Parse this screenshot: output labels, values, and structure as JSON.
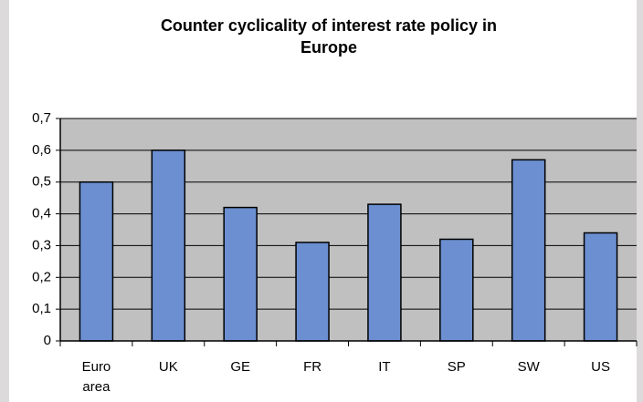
{
  "chart_data": {
    "type": "bar",
    "title": "Counter cyclicality of interest rate policy in Europe",
    "categories": [
      "Euro area",
      "UK",
      "GE",
      "FR",
      "IT",
      "SP",
      "SW",
      "US"
    ],
    "values": [
      0.5,
      0.6,
      0.42,
      0.31,
      0.43,
      0.32,
      0.57,
      0.34
    ],
    "color": "#6b8fd0",
    "plot_background": "#c0c0c0",
    "ylim": [
      0,
      0.7
    ],
    "yticks": [
      0,
      {
        "value": 0.1,
        "label": "0,1"
      },
      {
        "value": 0.2,
        "label": "0,2"
      },
      {
        "value": 0.3,
        "label": "0,3"
      },
      {
        "value": 0.4,
        "label": "0,4"
      },
      {
        "value": 0.5,
        "label": "0,5"
      },
      {
        "value": 0.6,
        "label": "0,6"
      },
      {
        "value": 0.7,
        "label": "0,7"
      }
    ],
    "grid": true
  }
}
